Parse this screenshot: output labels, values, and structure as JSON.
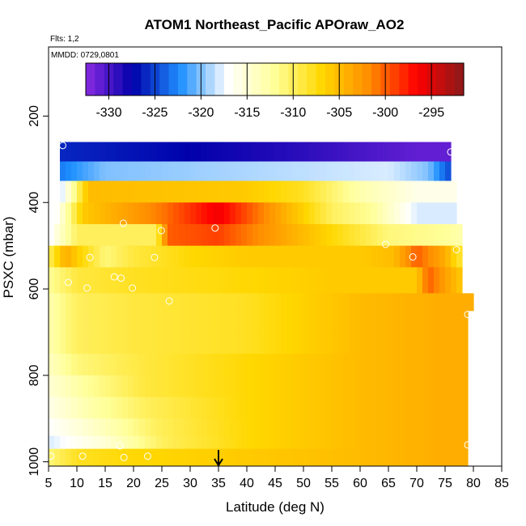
{
  "chart_data": {
    "type": "heatmap",
    "title": "ATOM1 Northeast_Pacific APOraw_AO2",
    "flights_note": "Flts: 1,2",
    "date_note": "MMDD: 0729,0801",
    "xlabel": "Latitude (deg N)",
    "ylabel": "PSXC (mbar)",
    "xlim": [
      5,
      85
    ],
    "ylim": [
      1010,
      40
    ],
    "y_reversed": true,
    "xticks": [
      5,
      10,
      15,
      20,
      25,
      30,
      35,
      40,
      45,
      50,
      55,
      60,
      65,
      70,
      75,
      80,
      85
    ],
    "yticks": [
      200,
      400,
      600,
      800,
      1000
    ],
    "colorbar": {
      "min": -332.5,
      "max": -291.5,
      "ticks": [
        -330,
        -325,
        -320,
        -315,
        -310,
        -305,
        -300,
        -295
      ],
      "colors": [
        "#8a2be2",
        "#0000aa",
        "#1e90ff",
        "#ffffff",
        "#ffff99",
        "#ffd700",
        "#ff8c00",
        "#ff0000",
        "#8b1a1a"
      ]
    },
    "grid": false,
    "marker_latitude": 35,
    "layers": [
      {
        "p_top": 260,
        "p_bot": 305,
        "lat_min": 7.0,
        "lat_max": 76.0,
        "values": [
          [
            7,
            -326
          ],
          [
            25,
            -327
          ],
          [
            50,
            -329
          ],
          [
            70,
            -331
          ],
          [
            76,
            -331
          ]
        ]
      },
      {
        "p_top": 305,
        "p_bot": 350,
        "lat_min": 7.0,
        "lat_max": 76.0,
        "values": [
          [
            7,
            -323
          ],
          [
            15,
            -320
          ],
          [
            40,
            -319
          ],
          [
            65,
            -318
          ],
          [
            72,
            -320
          ],
          [
            76,
            -325
          ]
        ]
      },
      {
        "p_top": 350,
        "p_bot": 400,
        "lat_min": 7.0,
        "lat_max": 77.0,
        "values": [
          [
            7,
            -319
          ],
          [
            12,
            -305
          ],
          [
            40,
            -306
          ],
          [
            50,
            -308
          ],
          [
            60,
            -313
          ],
          [
            70,
            -316
          ],
          [
            77,
            -316
          ]
        ]
      },
      {
        "p_top": 400,
        "p_bot": 450,
        "lat_min": 6.0,
        "lat_max": 77.0,
        "values": [
          [
            6,
            -318
          ],
          [
            11,
            -306
          ],
          [
            25,
            -301
          ],
          [
            35,
            -296
          ],
          [
            45,
            -303
          ],
          [
            55,
            -310
          ],
          [
            62,
            -312
          ],
          [
            70,
            -318
          ],
          [
            77,
            -318
          ]
        ]
      },
      {
        "p_top": 450,
        "p_bot": 500,
        "lat_min": 6.0,
        "lat_max": 78.0,
        "values": [
          [
            6,
            -316
          ],
          [
            10,
            -310
          ],
          [
            24,
            -310
          ],
          [
            26,
            -300
          ],
          [
            35,
            -299
          ],
          [
            45,
            -303
          ],
          [
            55,
            -307
          ],
          [
            65,
            -311
          ],
          [
            75,
            -312
          ],
          [
            78,
            -313
          ]
        ]
      },
      {
        "p_top": 500,
        "p_bot": 550,
        "lat_min": 5.0,
        "lat_max": 78.0,
        "values": [
          [
            5,
            -310
          ],
          [
            8,
            -304
          ],
          [
            12,
            -308
          ],
          [
            15,
            -311
          ],
          [
            20,
            -309
          ],
          [
            30,
            -307
          ],
          [
            40,
            -306
          ],
          [
            50,
            -306
          ],
          [
            60,
            -306
          ],
          [
            66,
            -305
          ],
          [
            70,
            -300
          ],
          [
            75,
            -304
          ],
          [
            78,
            -309
          ]
        ]
      },
      {
        "p_top": 550,
        "p_bot": 610,
        "lat_min": 5.0,
        "lat_max": 78.0,
        "values": [
          [
            5,
            -312
          ],
          [
            10,
            -309
          ],
          [
            20,
            -308
          ],
          [
            40,
            -307
          ],
          [
            55,
            -306
          ],
          [
            65,
            -306
          ],
          [
            70,
            -306
          ],
          [
            72,
            -300
          ],
          [
            76,
            -304
          ],
          [
            78,
            -306
          ]
        ]
      },
      {
        "p_top": 610,
        "p_bot": 650,
        "lat_min": 5.0,
        "lat_max": 80.0,
        "values": [
          [
            5,
            -313
          ],
          [
            10,
            -310
          ],
          [
            20,
            -309
          ],
          [
            40,
            -308
          ],
          [
            60,
            -305
          ],
          [
            75,
            -304
          ],
          [
            80,
            -304
          ]
        ]
      },
      {
        "p_top": 650,
        "p_bot": 700,
        "lat_min": 5.0,
        "lat_max": 79.0,
        "values": [
          [
            5,
            -313
          ],
          [
            10,
            -310
          ],
          [
            20,
            -309
          ],
          [
            40,
            -308
          ],
          [
            60,
            -305
          ],
          [
            75,
            -304
          ],
          [
            79,
            -304
          ]
        ]
      },
      {
        "p_top": 700,
        "p_bot": 750,
        "lat_min": 5.0,
        "lat_max": 79.0,
        "values": [
          [
            5,
            -313
          ],
          [
            10,
            -310
          ],
          [
            20,
            -309
          ],
          [
            40,
            -308
          ],
          [
            60,
            -305
          ],
          [
            75,
            -304
          ],
          [
            79,
            -304
          ]
        ]
      },
      {
        "p_top": 750,
        "p_bot": 800,
        "lat_min": 5.0,
        "lat_max": 79.0,
        "values": [
          [
            5,
            -314
          ],
          [
            10,
            -311
          ],
          [
            22,
            -309
          ],
          [
            40,
            -307
          ],
          [
            60,
            -305
          ],
          [
            75,
            -304
          ],
          [
            79,
            -304
          ]
        ]
      },
      {
        "p_top": 800,
        "p_bot": 850,
        "lat_min": 5.0,
        "lat_max": 79.0,
        "values": [
          [
            5,
            -315
          ],
          [
            12,
            -312
          ],
          [
            22,
            -309
          ],
          [
            40,
            -307
          ],
          [
            60,
            -305
          ],
          [
            75,
            -304
          ],
          [
            79,
            -304
          ]
        ]
      },
      {
        "p_top": 850,
        "p_bot": 900,
        "lat_min": 5.0,
        "lat_max": 79.0,
        "values": [
          [
            5,
            -316
          ],
          [
            12,
            -313
          ],
          [
            22,
            -310
          ],
          [
            40,
            -307
          ],
          [
            60,
            -305
          ],
          [
            75,
            -304
          ],
          [
            79,
            -304
          ]
        ]
      },
      {
        "p_top": 900,
        "p_bot": 940,
        "lat_min": 5.0,
        "lat_max": 79.0,
        "values": [
          [
            5,
            -317
          ],
          [
            14,
            -314
          ],
          [
            24,
            -310
          ],
          [
            40,
            -307
          ],
          [
            60,
            -305
          ],
          [
            75,
            -304
          ],
          [
            79,
            -304
          ]
        ]
      },
      {
        "p_top": 940,
        "p_bot": 970,
        "lat_min": 5.0,
        "lat_max": 79.0,
        "values": [
          [
            5,
            -318
          ],
          [
            15,
            -315
          ],
          [
            25,
            -310
          ],
          [
            40,
            -307
          ],
          [
            60,
            -305
          ],
          [
            75,
            -304
          ],
          [
            79,
            -304
          ]
        ]
      },
      {
        "p_top": 970,
        "p_bot": 1012,
        "lat_min": 5.0,
        "lat_max": 79.0,
        "values": [
          [
            5,
            -311
          ],
          [
            10,
            -308
          ],
          [
            20,
            -307
          ],
          [
            40,
            -306
          ],
          [
            60,
            -305
          ],
          [
            75,
            -304
          ],
          [
            79,
            -304
          ]
        ]
      }
    ],
    "sample_points": [
      [
        7.5,
        268
      ],
      [
        76.0,
        283
      ],
      [
        18.2,
        448
      ],
      [
        24.9,
        465
      ],
      [
        34.4,
        459
      ],
      [
        12.3,
        527
      ],
      [
        23.7,
        527
      ],
      [
        69.3,
        526
      ],
      [
        64.5,
        497
      ],
      [
        77.0,
        509
      ],
      [
        16.6,
        572
      ],
      [
        8.5,
        585
      ],
      [
        11.8,
        598
      ],
      [
        19.8,
        598
      ],
      [
        17.8,
        575
      ],
      [
        26.3,
        628
      ],
      [
        79.0,
        659
      ],
      [
        80.0,
        660
      ],
      [
        5.4,
        987
      ],
      [
        11.0,
        987
      ],
      [
        17.6,
        963
      ],
      [
        18.3,
        990
      ],
      [
        22.5,
        987
      ],
      [
        79.0,
        961
      ]
    ]
  }
}
